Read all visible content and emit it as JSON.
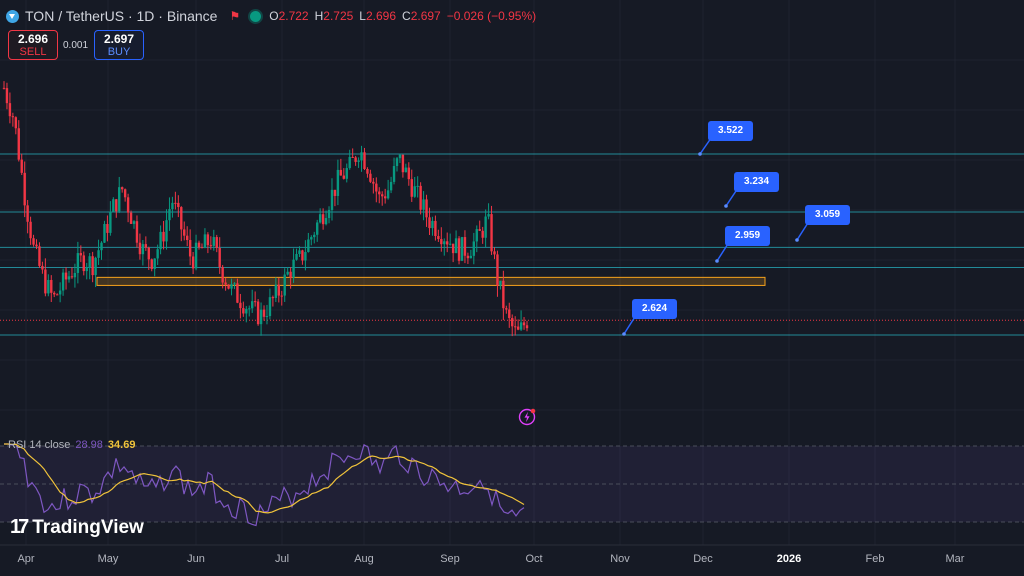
{
  "header": {
    "symbol_title": "TON / TetherUS · 1D · Binance",
    "ohlc": [
      {
        "k": "O",
        "v": "2.722"
      },
      {
        "k": "H",
        "v": "2.725"
      },
      {
        "k": "L",
        "v": "2.696"
      },
      {
        "k": "C",
        "v": "2.697"
      },
      {
        "k": "",
        "v": "−0.026 (−0.95%)"
      }
    ]
  },
  "trade": {
    "sell_price": "2.696",
    "sell_label": "SELL",
    "spread": "0.001",
    "buy_price": "2.697",
    "buy_label": "BUY"
  },
  "levels": [
    {
      "label": "3.522",
      "price": 3.522
    },
    {
      "label": "3.234",
      "price": 3.234
    },
    {
      "label": "3.059",
      "price": 3.059
    },
    {
      "label": "2.959",
      "price": 2.959
    },
    {
      "label": "2.624",
      "price": 2.624
    }
  ],
  "rsi": {
    "name": "RSI 14 close",
    "value": "28.98",
    "ma": "34.69"
  },
  "branding": {
    "logo_text": "TradingView"
  },
  "x_axis": [
    "Apr",
    "May",
    "Jun",
    "Jul",
    "Aug",
    "Sep",
    "Oct",
    "Nov",
    "Dec",
    "2026",
    "Feb",
    "Mar"
  ],
  "colors": {
    "up": "#089981",
    "down": "#f23645",
    "accent": "#2962ff",
    "zone": "#f7a21b",
    "level": "#26a6b5",
    "rsi": "#7e57c2",
    "rsi_ma": "#f0c33b"
  },
  "chart_data": {
    "type": "candlestick",
    "current_price": 2.697,
    "zone": [
      2.87,
      2.91
    ],
    "close_path": [
      3.85,
      3.7,
      3.35,
      3.05,
      2.9,
      2.8,
      2.88,
      2.95,
      3.0,
      2.98,
      3.1,
      3.25,
      3.35,
      3.2,
      3.05,
      3.0,
      3.1,
      3.3,
      3.15,
      3.0,
      3.05,
      3.1,
      2.95,
      2.85,
      2.8,
      2.75,
      2.72,
      2.78,
      2.85,
      2.95,
      3.0,
      3.1,
      3.2,
      3.3,
      3.4,
      3.45,
      3.55,
      3.45,
      3.3,
      3.35,
      3.5,
      3.4,
      3.3,
      3.2,
      3.15,
      3.1,
      3.05,
      3.05,
      3.1,
      3.2,
      2.9,
      2.7,
      2.62,
      2.7
    ]
  }
}
